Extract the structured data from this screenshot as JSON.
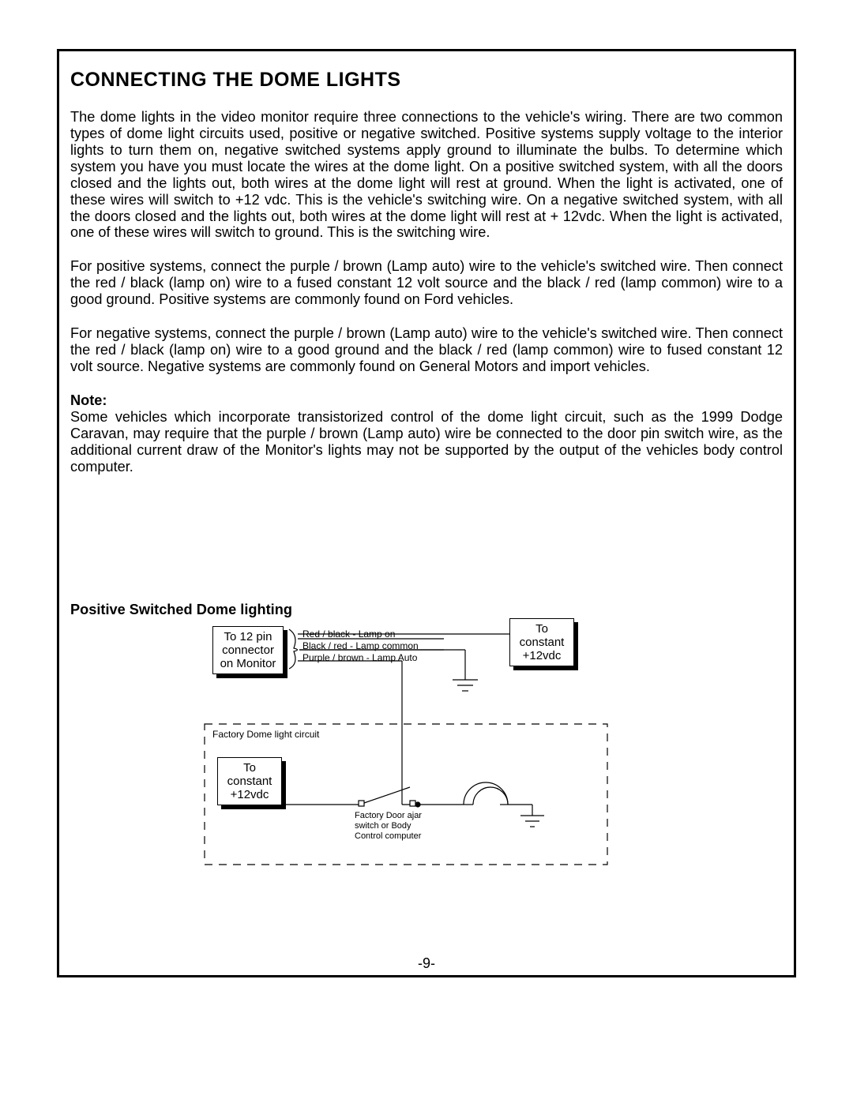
{
  "title": "CONNECTING THE DOME LIGHTS",
  "para1": "The dome lights in the video monitor require three connections to the vehicle's wiring.  There are two common types of dome light circuits used, positive or negative switched.  Positive systems supply voltage to the interior lights to turn them on, negative switched systems apply ground to illuminate the bulbs. To determine which system you have you must locate the wires at the dome light.  On a positive switched system, with all the doors closed and the lights out, both wires at the dome light will rest at ground.  When the light is activated, one of these wires will switch to +12 vdc.  This is the vehicle's switching wire. On a negative switched system, with all the doors closed and the lights out, both wires at the dome light will rest at + 12vdc.  When the light is activated, one of these wires will switch to ground.  This is the switching wire.",
  "para2": "For positive systems, connect the purple / brown (Lamp auto) wire to the vehicle's switched wire.  Then connect the red / black (lamp on) wire to a fused constant 12 volt source and the black / red (lamp common) wire to a good ground.  Positive systems are commonly found on Ford vehicles.",
  "para3": "For negative systems, connect the purple / brown (Lamp auto) wire to the vehicle's switched wire.  Then connect the red / black (lamp on) wire to a good ground and the black / red (lamp common) wire to fused constant 12 volt source.  Negative systems are commonly found on General Motors and import vehicles.",
  "note_label": "Note:",
  "note_body": "Some vehicles which incorporate transistorized control of the dome light circuit, such as the 1999 Dodge Caravan, may require that the purple / brown (Lamp auto) wire be connected to the door pin switch wire, as the additional current draw of the Monitor's lights may not be supported by the output of the vehicles body control computer.",
  "diagram": {
    "title": "Positive Switched Dome lighting",
    "box_monitor": "To 12 pin\nconnector\non Monitor",
    "box_constant_top": "To\nconstant\n+12vdc",
    "box_constant_bot": "To\nconstant\n+12vdc",
    "wire1": "Red / black - Lamp on",
    "wire2": "Black / red - Lamp common",
    "wire3": "Purple / brown - Lamp Auto",
    "circuit_label": "Factory Dome light circuit",
    "switch_label": "Factory Door ajar\nswitch or Body\nControl computer",
    "colors": {
      "line": "#000000",
      "bg": "#ffffff"
    }
  },
  "page_number": "-9-"
}
